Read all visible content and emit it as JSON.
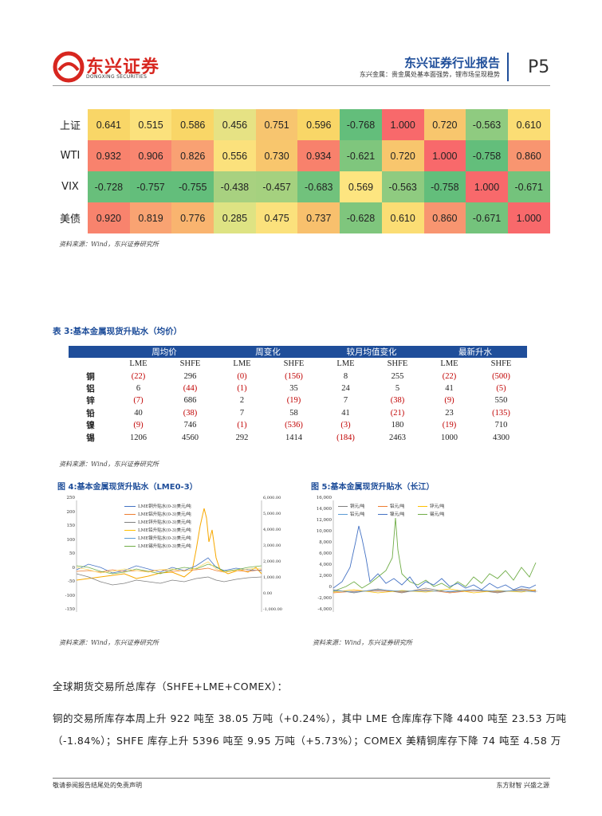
{
  "header": {
    "logo_cn": "东兴证券",
    "logo_en": "DONGXING SECURITIES",
    "brand": "东兴证券行业报告",
    "subtitle": "东兴金属：贵金属处基本面强势，锂市场呈现稳势",
    "page": "P5"
  },
  "corr_table": {
    "rows": [
      {
        "label": "上证",
        "values": [
          "0.641",
          "0.515",
          "0.586",
          "0.456",
          "0.751",
          "0.596",
          "-0.768",
          "1.000",
          "0.720",
          "-0.563",
          "0.610"
        ],
        "colors": [
          "#f9d667",
          "#fbe17c",
          "#f9d667",
          "#e6e284",
          "#f7c56f",
          "#f9d667",
          "#63be7b",
          "#f8696b",
          "#f8c66d",
          "#8fcb80",
          "#fbdd74"
        ]
      },
      {
        "label": "WTI",
        "values": [
          "0.932",
          "0.906",
          "0.826",
          "0.556",
          "0.730",
          "0.934",
          "-0.621",
          "0.720",
          "1.000",
          "-0.758",
          "0.860"
        ],
        "colors": [
          "#f8826d",
          "#f98670",
          "#f9a173",
          "#fbe17c",
          "#f8c66d",
          "#f8816c",
          "#7fc67d",
          "#f8c66d",
          "#f8696b",
          "#63be7b",
          "#f89570"
        ]
      },
      {
        "label": "VIX",
        "values": [
          "-0.728",
          "-0.757",
          "-0.755",
          "-0.438",
          "-0.457",
          "-0.683",
          "0.569",
          "-0.563",
          "-0.758",
          "1.000",
          "-0.671"
        ],
        "colors": [
          "#68bf7b",
          "#63be7b",
          "#63be7b",
          "#a8d180",
          "#a5d17f",
          "#71c27c",
          "#fde580",
          "#8fcb80",
          "#63be7b",
          "#f8696b",
          "#74c37c"
        ]
      },
      {
        "label": "美债",
        "values": [
          "0.920",
          "0.819",
          "0.776",
          "0.285",
          "0.475",
          "0.737",
          "-0.628",
          "0.610",
          "0.860",
          "-0.671",
          "1.000"
        ],
        "colors": [
          "#f8836d",
          "#f9a372",
          "#f9b46f",
          "#dee383",
          "#fbe17c",
          "#f8c06d",
          "#7fc67d",
          "#fbdd74",
          "#f89570",
          "#74c37c",
          "#f8696b"
        ]
      }
    ]
  },
  "source_text": "资料来源：Wind，东兴证券研究所",
  "table3": {
    "title": "表 3:基本金属现货升贴水（均价）",
    "groups": [
      "周均价",
      "周变化",
      "较月均值变化",
      "最新升水"
    ],
    "subheads": [
      "LME",
      "SHFE",
      "LME",
      "SHFE",
      "LME",
      "SHFE",
      "LME",
      "SHFE"
    ],
    "rows": [
      {
        "metal": "铜",
        "cells": [
          "(22)",
          "296",
          "(0)",
          "(156)",
          "8",
          "255",
          "(22)",
          "(500)"
        ]
      },
      {
        "metal": "铝",
        "cells": [
          "6",
          "(44)",
          "(1)",
          "35",
          "24",
          "5",
          "41",
          "(5)"
        ]
      },
      {
        "metal": "锌",
        "cells": [
          "(7)",
          "686",
          "2",
          "(19)",
          "7",
          "(38)",
          "(9)",
          "550"
        ]
      },
      {
        "metal": "铅",
        "cells": [
          "40",
          "(38)",
          "7",
          "58",
          "41",
          "(21)",
          "23",
          "(135)"
        ]
      },
      {
        "metal": "镍",
        "cells": [
          "(9)",
          "746",
          "(1)",
          "(536)",
          "(3)",
          "180",
          "(19)",
          "710"
        ]
      },
      {
        "metal": "锡",
        "cells": [
          "1206",
          "4560",
          "292",
          "1414",
          "(184)",
          "2463",
          "1000",
          "4300"
        ]
      }
    ]
  },
  "fig4": {
    "title": "图 4:基本金属现货升贴水（LME0-3）",
    "legend": [
      "LME铜升贴水(0-3)美元/吨",
      "LME铝升贴水(0-3)美元/吨",
      "LME锌升贴水(0-3)美元/吨",
      "LME铅升贴水(0-3)美元/吨",
      "LME镍升贴水(0-3)美元/吨",
      "LME锡升贴水(0-3)美元/吨"
    ],
    "left_ticks": [
      "250",
      "200",
      "150",
      "100",
      "50",
      "0",
      "-50",
      "-100",
      "-150"
    ],
    "right_ticks": [
      "6,000.00",
      "5,000.00",
      "4,000.00",
      "3,000.00",
      "2,000.00",
      "1,000.00",
      "0.00",
      "-1,000.00"
    ]
  },
  "fig5": {
    "title": "图 5:基本金属现货升贴水（长江）",
    "legend": [
      "铜元/吨",
      "铝元/吨",
      "锌元/吨",
      "铅元/吨",
      "镍元/吨",
      "锡元/吨"
    ],
    "y_ticks": [
      "16,000",
      "14,000",
      "12,000",
      "10,000",
      "8,000",
      "6,000",
      "4,000",
      "2,000",
      "0",
      "-2,000",
      "-4,000"
    ]
  },
  "colors": {
    "brand": "#1f4e9a",
    "negative": "#c00000"
  },
  "body": {
    "heading": "全球期货交易所总库存（SHFE+LME+COMEX）：",
    "line1": "铜的交易所库存本周上升 922 吨至 38.05 万吨（+0.24%），其中 LME 仓库库存下降 4400 吨至 23.53 万吨",
    "line2": "（-1.84%）；SHFE 库存上升 5396 吨至 9.95 万吨（+5.73%）；COMEX 美精铜库存下降 74 吨至 4.58 万"
  },
  "footer": {
    "left": "敬请参阅报告结尾处的免责声明",
    "right": "东方财智  兴盛之源"
  }
}
